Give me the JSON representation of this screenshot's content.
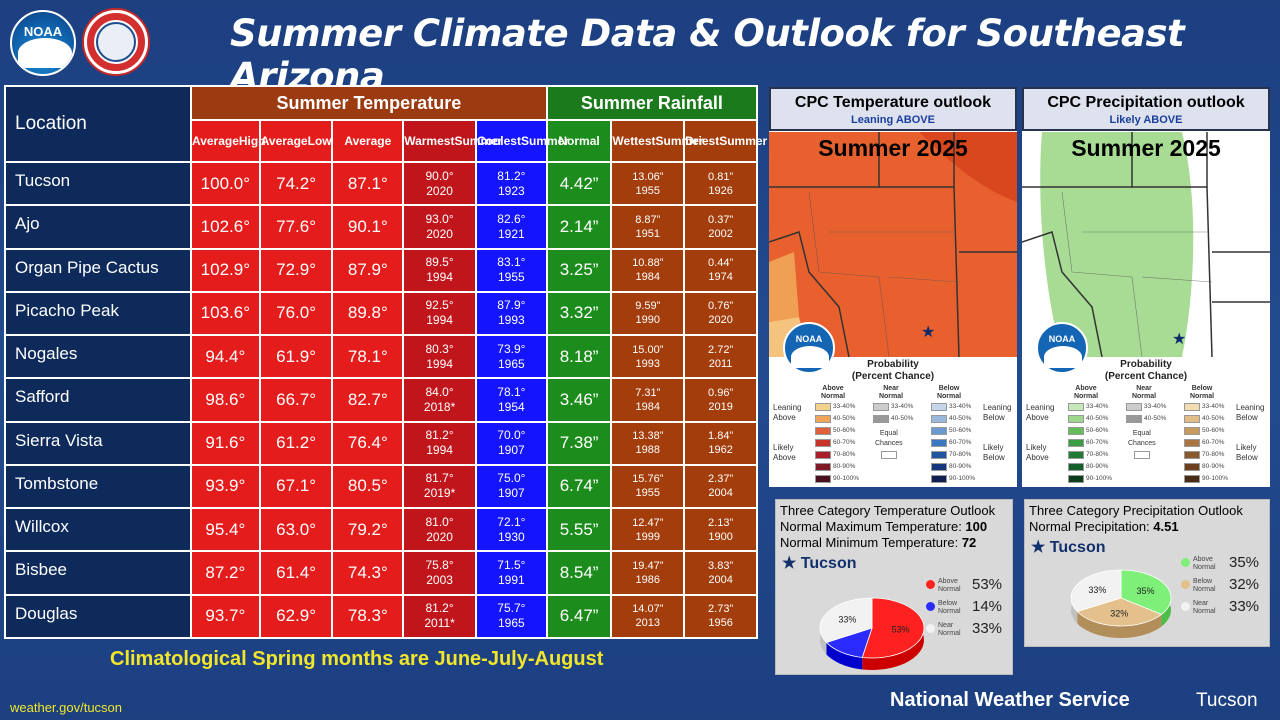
{
  "header": {
    "noaa_logo_text": "NOAA",
    "title": "Summer Climate Data & Outlook for Southeast Arizona"
  },
  "table": {
    "location_header": "Location",
    "temp_group": "Summer Temperature",
    "rain_group": "Summer Rainfall",
    "subheaders": {
      "avg_high": [
        "Average",
        "High"
      ],
      "avg_low": [
        "Average",
        "Low"
      ],
      "average": "Average",
      "warmest": [
        "Warmest",
        "Summer"
      ],
      "coolest": [
        "Coolest",
        "Summer"
      ],
      "normal": "Normal",
      "wettest": [
        "Wettest",
        "Summer"
      ],
      "driest": [
        "Driest",
        "Summer"
      ]
    },
    "rows": [
      {
        "loc": "Tucson",
        "high": "100.0°",
        "low": "74.2°",
        "avg": "87.1°",
        "warm": "90.0°",
        "warm_yr": "2020",
        "cool": "81.2°",
        "cool_yr": "1923",
        "normal": "4.42”",
        "wet": "13.06”",
        "wet_yr": "1955",
        "dry": "0.81”",
        "dry_yr": "1926"
      },
      {
        "loc": "Ajo",
        "high": "102.6°",
        "low": "77.6°",
        "avg": "90.1°",
        "warm": "93.0°",
        "warm_yr": "2020",
        "cool": "82.6°",
        "cool_yr": "1921",
        "normal": "2.14”",
        "wet": "8.87”",
        "wet_yr": "1951",
        "dry": "0.37”",
        "dry_yr": "2002"
      },
      {
        "loc": "Organ Pipe Cactus",
        "high": "102.9°",
        "low": "72.9°",
        "avg": "87.9°",
        "warm": "89.5°",
        "warm_yr": "1994",
        "cool": "83.1°",
        "cool_yr": "1955",
        "normal": "3.25”",
        "wet": "10.88”",
        "wet_yr": "1984",
        "dry": "0.44”",
        "dry_yr": "1974"
      },
      {
        "loc": "Picacho Peak",
        "high": "103.6°",
        "low": "76.0°",
        "avg": "89.8°",
        "warm": "92.5°",
        "warm_yr": "1994",
        "cool": "87.9°",
        "cool_yr": "1993",
        "normal": "3.32”",
        "wet": "9.59”",
        "wet_yr": "1990",
        "dry": "0.76”",
        "dry_yr": "2020"
      },
      {
        "loc": "Nogales",
        "high": "94.4°",
        "low": "61.9°",
        "avg": "78.1°",
        "warm": "80.3°",
        "warm_yr": "1994",
        "cool": "73.9°",
        "cool_yr": "1965",
        "normal": "8.18”",
        "wet": "15.00”",
        "wet_yr": "1993",
        "dry": "2.72”",
        "dry_yr": "2011"
      },
      {
        "loc": "Safford",
        "high": "98.6°",
        "low": "66.7°",
        "avg": "82.7°",
        "warm": "84.0°",
        "warm_yr": "2018*",
        "cool": "78.1°",
        "cool_yr": "1954",
        "normal": "3.46”",
        "wet": "7.31”",
        "wet_yr": "1984",
        "dry": "0.96”",
        "dry_yr": "2019"
      },
      {
        "loc": "Sierra Vista",
        "high": "91.6°",
        "low": "61.2°",
        "avg": "76.4°",
        "warm": "81.2°",
        "warm_yr": "1994",
        "cool": "70.0°",
        "cool_yr": "1907",
        "normal": "7.38”",
        "wet": "13.38”",
        "wet_yr": "1988",
        "dry": "1.84”",
        "dry_yr": "1962"
      },
      {
        "loc": "Tombstone",
        "high": "93.9°",
        "low": "67.1°",
        "avg": "80.5°",
        "warm": "81.7°",
        "warm_yr": "2019*",
        "cool": "75.0°",
        "cool_yr": "1907",
        "normal": "6.74”",
        "wet": "15.76”",
        "wet_yr": "1955",
        "dry": "2.37”",
        "dry_yr": "2004"
      },
      {
        "loc": "Willcox",
        "high": "95.4°",
        "low": "63.0°",
        "avg": "79.2°",
        "warm": "81.0°",
        "warm_yr": "2020",
        "cool": "72.1°",
        "cool_yr": "1930",
        "normal": "5.55”",
        "wet": "12.47”",
        "wet_yr": "1999",
        "dry": "2.13”",
        "dry_yr": "1900"
      },
      {
        "loc": "Bisbee",
        "high": "87.2°",
        "low": "61.4°",
        "avg": "74.3°",
        "warm": "75.8°",
        "warm_yr": "2003",
        "cool": "71.5°",
        "cool_yr": "1991",
        "normal": "8.54”",
        "wet": "19.47”",
        "wet_yr": "1986",
        "dry": "3.83”",
        "dry_yr": "2004"
      },
      {
        "loc": "Douglas",
        "high": "93.7°",
        "low": "62.9°",
        "avg": "78.3°",
        "warm": "81.2°",
        "warm_yr": "2011*",
        "cool": "75.7°",
        "cool_yr": "1965",
        "normal": "6.47”",
        "wet": "14.07”",
        "wet_yr": "2013",
        "dry": "2.73”",
        "dry_yr": "1956"
      }
    ]
  },
  "spring_note": "Climatological Spring months are June-July-August",
  "footer": {
    "url": "weather.gov/tucson",
    "org": "National Weather Service",
    "office": "Tucson"
  },
  "outlooks": {
    "temp": {
      "title": "CPC Temperature outlook",
      "subtitle": "Leaning ABOVE",
      "season": "Summer 2025",
      "colors": {
        "base": "#e8602e",
        "dark": "#d9471f",
        "light": "#f0a055"
      }
    },
    "precip": {
      "title": "CPC Precipitation outlook",
      "subtitle": "Likely ABOVE",
      "season": "Summer 2025",
      "colors": {
        "base": "#9fd88a"
      }
    },
    "legend": {
      "title": [
        "Probability",
        "(Percent Chance)"
      ],
      "temp_cols": [
        [
          "Above",
          "Normal"
        ],
        [
          "Near",
          "Normal"
        ],
        [
          "Below",
          "Normal"
        ]
      ],
      "precip_cols": [
        [
          "Above",
          "Normal"
        ],
        [
          "Near",
          "Normal"
        ],
        [
          "Below",
          "Normal"
        ]
      ],
      "leaning_above": [
        "Leaning",
        "Above"
      ],
      "likely_above": [
        "Likely",
        "Above"
      ],
      "leaning_below": [
        "Leaning",
        "Below"
      ],
      "likely_below": [
        "Likely",
        "Below"
      ],
      "equal_chances": [
        "Equal",
        "Chances"
      ],
      "ranges": [
        "33-40%",
        "40-50%",
        "50-60%",
        "60-70%",
        "70-80%",
        "80-90%",
        "90-100%"
      ],
      "near_ranges": [
        "33-40%",
        "40-50%"
      ],
      "temp_above_colors": [
        "#f4d28c",
        "#f0a55a",
        "#e0603c",
        "#c8342a",
        "#a81f2a",
        "#7d1a28",
        "#4a1020"
      ],
      "temp_below_colors": [
        "#c6d6ea",
        "#9ab8dc",
        "#6a9ad0",
        "#3a78c0",
        "#1f55a0",
        "#17377d",
        "#101f50"
      ],
      "precip_above_colors": [
        "#c6e8b8",
        "#9fd88a",
        "#66bb5a",
        "#3b9c44",
        "#207a36",
        "#135e2a",
        "#0b3f1c"
      ],
      "precip_below_colors": [
        "#f2dcb0",
        "#e0bd86",
        "#c99a5e",
        "#a87440",
        "#8a5a2e",
        "#6a4020",
        "#4a2c14"
      ],
      "near_colors": [
        "#cccccc",
        "#999999"
      ]
    },
    "temp_pie": {
      "title": "Three Category Temperature Outlook",
      "normal_max_label": "Normal Maximum Temperature: ",
      "normal_max": "100",
      "normal_min_label": "Normal Minimum Temperature: ",
      "normal_min": "72",
      "location": "Tucson",
      "slices": [
        {
          "label": [
            "Above",
            "Normal"
          ],
          "value": 53,
          "pct": "53%",
          "color": "#ff2020"
        },
        {
          "label": [
            "Below",
            "Normal"
          ],
          "value": 14,
          "pct": "14%",
          "color": "#2b2bff"
        },
        {
          "label": [
            "Near",
            "Normal"
          ],
          "value": 33,
          "pct": "33%",
          "color": "#f2f2f2"
        }
      ],
      "slice_labels": [
        "53%",
        "33%"
      ]
    },
    "precip_pie": {
      "title": "Three Category Precipitation Outlook",
      "normal_label": "Normal Precipitation: ",
      "normal": "4.51",
      "location": "Tucson",
      "slices": [
        {
          "label": [
            "Above",
            "Normal"
          ],
          "value": 35,
          "pct": "35%",
          "color": "#7ef07a"
        },
        {
          "label": [
            "Below",
            "Normal"
          ],
          "value": 32,
          "pct": "32%",
          "color": "#e3c08c"
        },
        {
          "label": [
            "Near",
            "Normal"
          ],
          "value": 33,
          "pct": "33%",
          "color": "#f2f2f2"
        }
      ],
      "slice_labels": [
        "35%",
        "32%",
        "33%"
      ]
    }
  }
}
